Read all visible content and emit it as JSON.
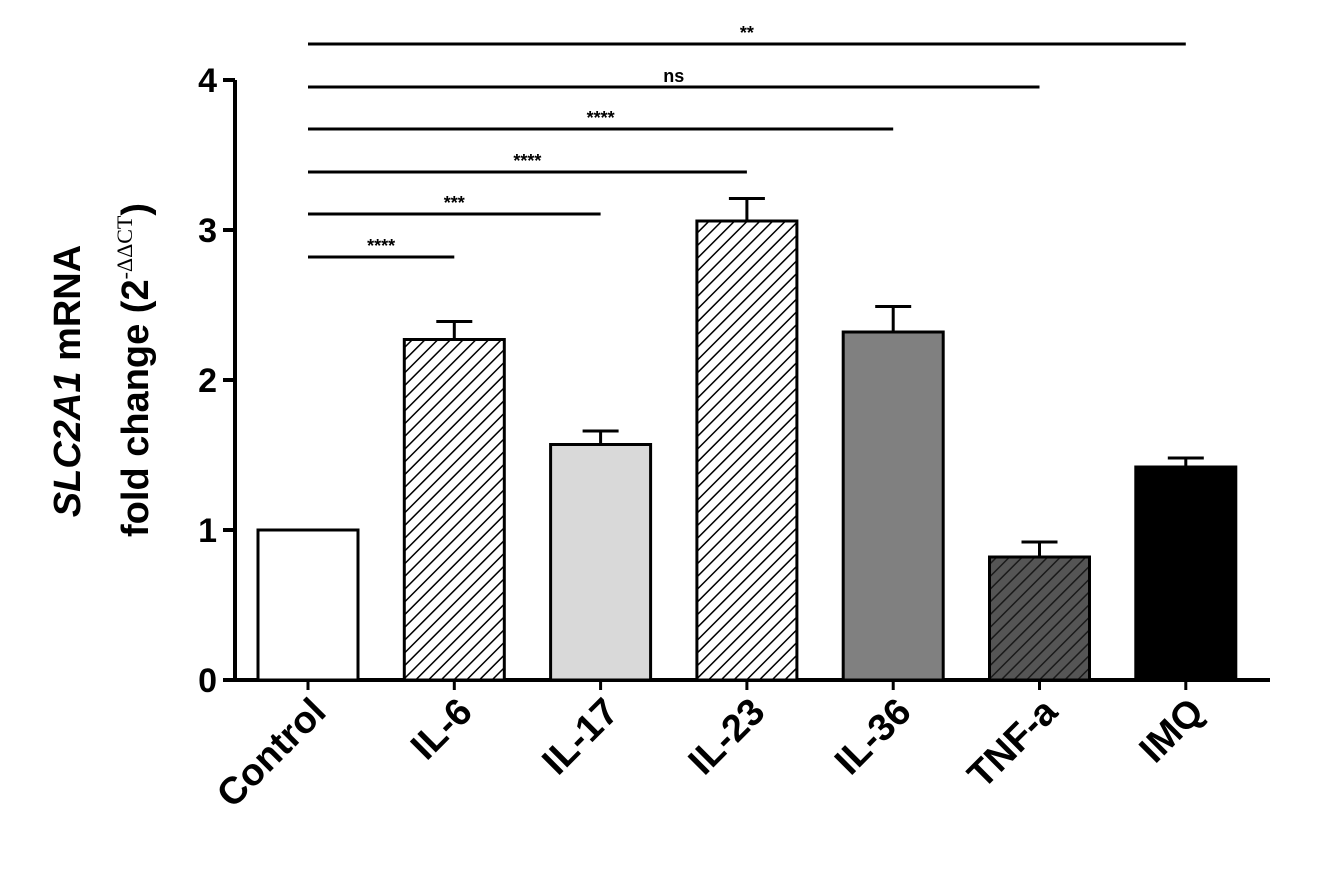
{
  "chart_data": {
    "type": "bar",
    "categories": [
      "Control",
      "IL-6",
      "IL-17",
      "IL-23",
      "IL-36",
      "TNF-a",
      "IMQ"
    ],
    "values": [
      1.0,
      2.27,
      1.57,
      3.06,
      2.32,
      0.82,
      1.42
    ],
    "errors": [
      0.0,
      0.12,
      0.09,
      0.15,
      0.17,
      0.1,
      0.06
    ],
    "fills": [
      "white",
      "hatch-light",
      "#d9d9d9",
      "hatch-light",
      "#808080",
      "hatch-dark",
      "#000000"
    ],
    "ylim": [
      0,
      4
    ],
    "yticks": [
      0,
      1,
      2,
      3,
      4
    ],
    "ylabel_line1_gene": "SLC2A1",
    "ylabel_line1_rest": " mRNA",
    "ylabel_line2_prefix": "fold change (2",
    "ylabel_line2_exponent": "-ΔΔCT",
    "ylabel_line2_suffix": ")",
    "significance": [
      {
        "from": "Control",
        "to": "IL-6",
        "label": "****"
      },
      {
        "from": "Control",
        "to": "IL-17",
        "label": "***"
      },
      {
        "from": "Control",
        "to": "IL-23",
        "label": "****"
      },
      {
        "from": "Control",
        "to": "IL-36",
        "label": "****"
      },
      {
        "from": "Control",
        "to": "TNF-a",
        "label": "ns"
      },
      {
        "from": "Control",
        "to": "IMQ",
        "label": "**"
      }
    ]
  }
}
